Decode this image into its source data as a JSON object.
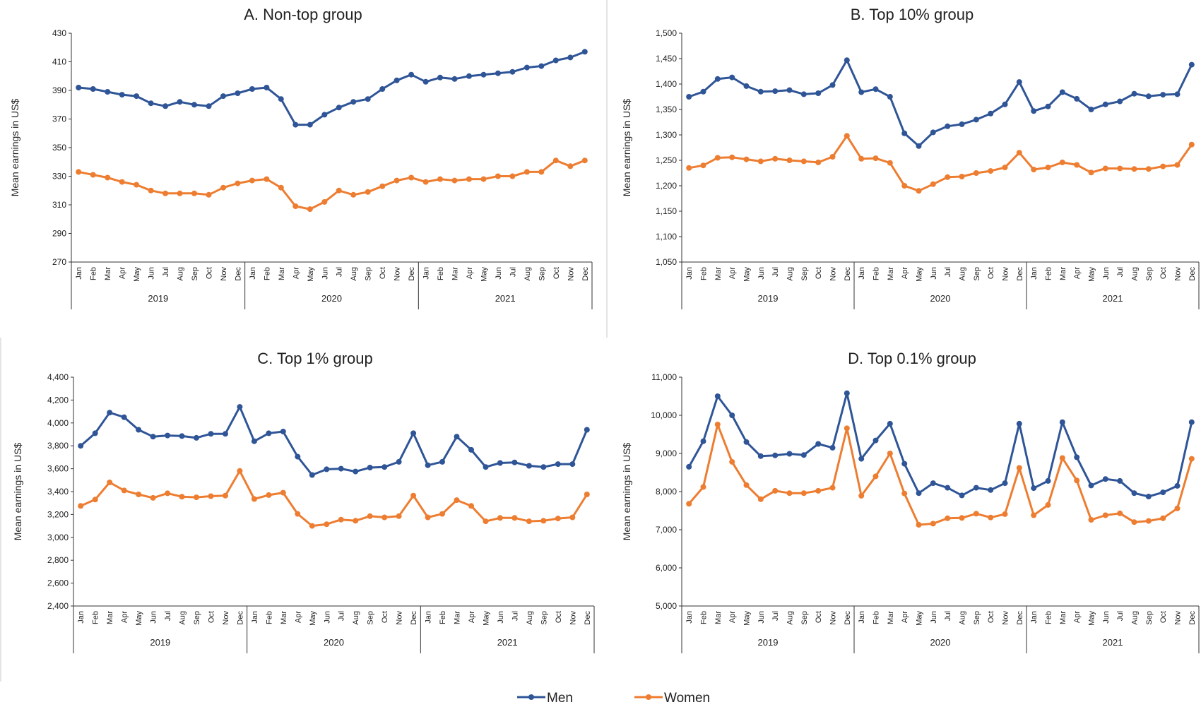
{
  "months": [
    "Jan",
    "Feb",
    "Mar",
    "Apr",
    "May",
    "Jun",
    "Jul",
    "Aug",
    "Sep",
    "Oct",
    "Nov",
    "Dec"
  ],
  "years": [
    "2019",
    "2020",
    "2021"
  ],
  "legend": {
    "men": "Men",
    "women": "Women"
  },
  "colors": {
    "men": "#2f5597",
    "women": "#ed7d31",
    "axis": "#333333",
    "grid": "#d9d9d9"
  },
  "chart_data": [
    {
      "type": "line",
      "title": "A. Non-top group",
      "ylabel": "Mean earnings in US$",
      "ylim": [
        270,
        430
      ],
      "yticks": [
        "270",
        "290",
        "310",
        "330",
        "350",
        "370",
        "390",
        "410",
        "430"
      ],
      "series": [
        {
          "name": "Men",
          "values": [
            392,
            391,
            389,
            387,
            386,
            381,
            379,
            382,
            380,
            379,
            386,
            388,
            391,
            392,
            384,
            366,
            366,
            373,
            378,
            382,
            384,
            391,
            397,
            401,
            396,
            399,
            398,
            400,
            401,
            402,
            403,
            406,
            407,
            411,
            413,
            417
          ]
        },
        {
          "name": "Women",
          "values": [
            333,
            331,
            329,
            326,
            324,
            320,
            318,
            318,
            318,
            317,
            322,
            325,
            327,
            328,
            322,
            309,
            307,
            312,
            320,
            317,
            319,
            323,
            327,
            329,
            326,
            328,
            327,
            328,
            328,
            330,
            330,
            333,
            333,
            341,
            337,
            341
          ]
        }
      ]
    },
    {
      "type": "line",
      "title": "B. Top 10% group",
      "ylabel": "Mean earnings in US$",
      "ylim": [
        1050,
        1500
      ],
      "yticks": [
        "1,050",
        "1,100",
        "1,150",
        "1,200",
        "1,250",
        "1,300",
        "1,350",
        "1,400",
        "1,450",
        "1,500"
      ],
      "series": [
        {
          "name": "Men",
          "values": [
            1375,
            1385,
            1410,
            1413,
            1396,
            1385,
            1386,
            1388,
            1380,
            1382,
            1398,
            1447,
            1384,
            1390,
            1375,
            1303,
            1278,
            1305,
            1317,
            1321,
            1330,
            1342,
            1360,
            1404,
            1347,
            1356,
            1384,
            1371,
            1350,
            1360,
            1366,
            1381,
            1376,
            1379,
            1380,
            1438
          ]
        },
        {
          "name": "Women",
          "values": [
            1235,
            1240,
            1255,
            1256,
            1252,
            1248,
            1253,
            1250,
            1248,
            1246,
            1257,
            1298,
            1253,
            1254,
            1245,
            1200,
            1190,
            1203,
            1217,
            1218,
            1225,
            1229,
            1236,
            1265,
            1232,
            1236,
            1246,
            1241,
            1226,
            1234,
            1234,
            1233,
            1233,
            1238,
            1241,
            1281
          ]
        }
      ]
    },
    {
      "type": "line",
      "title": "C. Top 1% group",
      "ylabel": "Mean earnings in US$",
      "ylim": [
        2400,
        4400
      ],
      "yticks": [
        "2,400",
        "2,600",
        "2,800",
        "3,000",
        "3,200",
        "3,400",
        "3,600",
        "3,800",
        "4,000",
        "4,200",
        "4,400"
      ],
      "series": [
        {
          "name": "Men",
          "values": [
            3800,
            3910,
            4090,
            4050,
            3940,
            3880,
            3890,
            3885,
            3870,
            3905,
            3905,
            4140,
            3840,
            3910,
            3925,
            3705,
            3545,
            3595,
            3600,
            3575,
            3610,
            3615,
            3660,
            3910,
            3630,
            3660,
            3880,
            3765,
            3615,
            3650,
            3655,
            3625,
            3615,
            3640,
            3640,
            3940
          ]
        },
        {
          "name": "Women",
          "values": [
            3275,
            3330,
            3480,
            3410,
            3375,
            3345,
            3385,
            3355,
            3350,
            3360,
            3365,
            3580,
            3335,
            3370,
            3390,
            3205,
            3100,
            3115,
            3155,
            3145,
            3185,
            3175,
            3185,
            3365,
            3175,
            3205,
            3325,
            3275,
            3140,
            3170,
            3170,
            3140,
            3145,
            3165,
            3175,
            3375
          ]
        }
      ]
    },
    {
      "type": "line",
      "title": "D. Top 0.1% group",
      "ylabel": "Mean earnings in US$",
      "ylim": [
        5000,
        11000
      ],
      "yticks": [
        "5,000",
        "6,000",
        "7,000",
        "8,000",
        "9,000",
        "10,000",
        "11,000"
      ],
      "series": [
        {
          "name": "Men",
          "values": [
            8650,
            9320,
            10500,
            10000,
            9300,
            8930,
            8950,
            8990,
            8960,
            9250,
            9150,
            10580,
            8860,
            9340,
            9780,
            8730,
            7960,
            8220,
            8100,
            7900,
            8100,
            8040,
            8220,
            9780,
            8090,
            8280,
            9820,
            8900,
            8160,
            8330,
            8280,
            7960,
            7870,
            7980,
            8150,
            9820
          ]
        },
        {
          "name": "Women",
          "values": [
            7680,
            8120,
            9760,
            8780,
            8170,
            7800,
            8020,
            7960,
            7960,
            8020,
            8100,
            9660,
            7890,
            8400,
            9000,
            7950,
            7130,
            7160,
            7300,
            7310,
            7420,
            7320,
            7410,
            8620,
            7380,
            7650,
            8880,
            8290,
            7260,
            7380,
            7430,
            7200,
            7230,
            7300,
            7560,
            8860
          ]
        }
      ]
    }
  ]
}
